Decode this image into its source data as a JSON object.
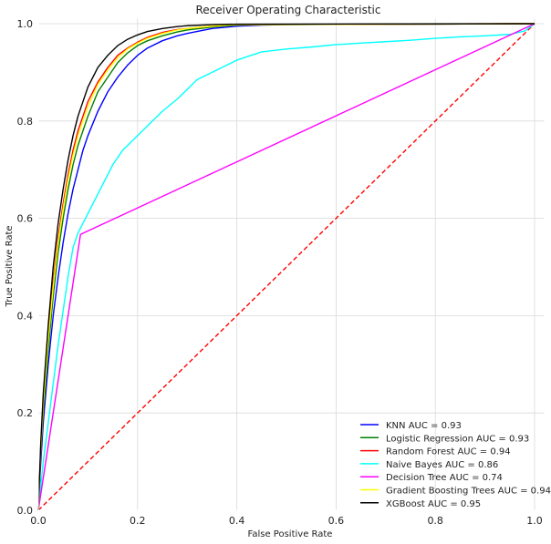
{
  "chart_data": {
    "type": "line",
    "title": "Receiver Operating Characteristic",
    "xlabel": "False Positive Rate",
    "ylabel": "True Positive Rate",
    "xlim": [
      0,
      1
    ],
    "ylim": [
      0,
      1
    ],
    "grid": true,
    "legend_position": "lower-right",
    "x_ticks": [
      "0.0",
      "0.2",
      "0.4",
      "0.6",
      "0.8",
      "1.0"
    ],
    "y_ticks": [
      "0.0",
      "0.2",
      "0.4",
      "0.6",
      "0.8",
      "1.0"
    ],
    "series": [
      {
        "name": "KNN AUC = 0.93",
        "color": "#0000ff",
        "x": [
          0,
          0.005,
          0.01,
          0.02,
          0.03,
          0.04,
          0.05,
          0.06,
          0.07,
          0.08,
          0.09,
          0.1,
          0.12,
          0.14,
          0.16,
          0.18,
          0.2,
          0.22,
          0.25,
          0.28,
          0.3,
          0.35,
          0.4,
          0.45,
          0.5,
          1.0
        ],
        "y": [
          0,
          0.1,
          0.18,
          0.3,
          0.4,
          0.48,
          0.55,
          0.61,
          0.66,
          0.7,
          0.74,
          0.77,
          0.82,
          0.86,
          0.89,
          0.915,
          0.935,
          0.95,
          0.965,
          0.975,
          0.98,
          0.99,
          0.995,
          0.997,
          0.998,
          1.0
        ]
      },
      {
        "name": "Logistic Regression AUC = 0.93",
        "color": "#008000",
        "x": [
          0,
          0.005,
          0.01,
          0.02,
          0.03,
          0.04,
          0.05,
          0.06,
          0.07,
          0.08,
          0.09,
          0.1,
          0.12,
          0.14,
          0.16,
          0.18,
          0.2,
          0.22,
          0.25,
          0.28,
          0.3,
          0.35,
          0.4,
          0.45,
          1.0
        ],
        "y": [
          0,
          0.12,
          0.2,
          0.33,
          0.44,
          0.53,
          0.6,
          0.66,
          0.71,
          0.75,
          0.78,
          0.81,
          0.86,
          0.89,
          0.92,
          0.94,
          0.955,
          0.965,
          0.975,
          0.983,
          0.987,
          0.993,
          0.997,
          0.998,
          1.0
        ]
      },
      {
        "name": "Random Forest AUC = 0.94",
        "color": "#ff0000",
        "x": [
          0,
          0.005,
          0.01,
          0.02,
          0.03,
          0.04,
          0.05,
          0.06,
          0.07,
          0.08,
          0.09,
          0.1,
          0.12,
          0.14,
          0.16,
          0.18,
          0.2,
          0.22,
          0.25,
          0.28,
          0.3,
          0.35,
          0.4,
          1.0
        ],
        "y": [
          0,
          0.13,
          0.22,
          0.36,
          0.47,
          0.56,
          0.63,
          0.69,
          0.74,
          0.78,
          0.81,
          0.84,
          0.88,
          0.91,
          0.935,
          0.95,
          0.962,
          0.972,
          0.982,
          0.988,
          0.99,
          0.995,
          0.998,
          1.0
        ]
      },
      {
        "name": "Naive Bayes AUC = 0.86",
        "color": "#00ffff",
        "x": [
          0,
          0.01,
          0.02,
          0.03,
          0.04,
          0.05,
          0.06,
          0.07,
          0.08,
          0.09,
          0.1,
          0.11,
          0.12,
          0.13,
          0.14,
          0.15,
          0.17,
          0.2,
          0.22,
          0.25,
          0.28,
          0.3,
          0.32,
          0.35,
          0.38,
          0.4,
          0.42,
          0.45,
          0.5,
          0.55,
          0.6,
          0.65,
          0.7,
          0.75,
          0.8,
          0.85,
          0.9,
          0.95,
          0.98,
          1.0
        ],
        "y": [
          0,
          0.1,
          0.18,
          0.26,
          0.34,
          0.41,
          0.48,
          0.54,
          0.57,
          0.59,
          0.61,
          0.63,
          0.65,
          0.67,
          0.69,
          0.71,
          0.74,
          0.77,
          0.79,
          0.82,
          0.845,
          0.865,
          0.885,
          0.9,
          0.915,
          0.925,
          0.932,
          0.942,
          0.948,
          0.952,
          0.957,
          0.96,
          0.963,
          0.966,
          0.97,
          0.973,
          0.975,
          0.978,
          0.985,
          1.0
        ]
      },
      {
        "name": "Decision Tree AUC = 0.74",
        "color": "#ff00ff",
        "x": [
          0,
          0.085,
          1.0
        ],
        "y": [
          0,
          0.567,
          1.0
        ]
      },
      {
        "name": "Gradient Boosting Trees AUC = 0.94",
        "color": "#ffff00",
        "x": [
          0,
          0.005,
          0.01,
          0.02,
          0.03,
          0.04,
          0.05,
          0.06,
          0.07,
          0.08,
          0.09,
          0.1,
          0.12,
          0.14,
          0.16,
          0.18,
          0.2,
          0.22,
          0.25,
          0.28,
          0.3,
          0.35,
          0.4,
          1.0
        ],
        "y": [
          0,
          0.13,
          0.22,
          0.35,
          0.46,
          0.55,
          0.62,
          0.68,
          0.73,
          0.77,
          0.8,
          0.83,
          0.875,
          0.905,
          0.93,
          0.948,
          0.96,
          0.97,
          0.98,
          0.987,
          0.99,
          0.995,
          0.998,
          1.0
        ]
      },
      {
        "name": "XGBoost AUC = 0.95",
        "color": "#000000",
        "x": [
          0,
          0.005,
          0.01,
          0.02,
          0.03,
          0.04,
          0.05,
          0.06,
          0.07,
          0.08,
          0.09,
          0.1,
          0.12,
          0.14,
          0.16,
          0.18,
          0.2,
          0.22,
          0.25,
          0.28,
          0.3,
          0.35,
          0.4,
          1.0
        ],
        "y": [
          0,
          0.14,
          0.24,
          0.38,
          0.5,
          0.59,
          0.66,
          0.72,
          0.77,
          0.81,
          0.84,
          0.87,
          0.91,
          0.935,
          0.955,
          0.968,
          0.977,
          0.984,
          0.99,
          0.994,
          0.996,
          0.998,
          0.999,
          1.0
        ]
      }
    ],
    "reference_line": {
      "color": "#ff0000",
      "x": [
        0,
        1
      ],
      "y": [
        0,
        1
      ]
    }
  }
}
